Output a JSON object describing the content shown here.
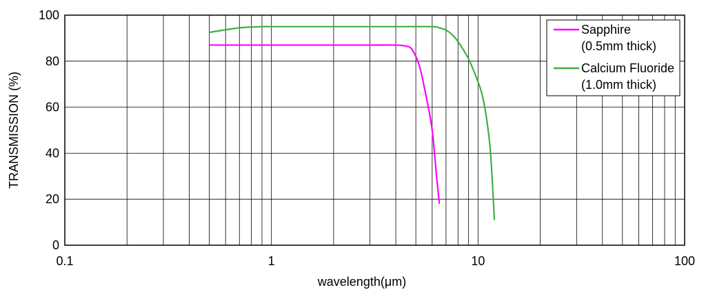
{
  "chart_data": {
    "type": "line",
    "xlabel": "wavelength(μm)",
    "ylabel": "TRANSMISSION (%)",
    "xscale": "log",
    "xlim": [
      0.1,
      100
    ],
    "ylim": [
      0,
      100
    ],
    "x_ticks": [
      0.1,
      1,
      10,
      100
    ],
    "x_tick_labels": [
      "0.1",
      "1",
      "10",
      "100"
    ],
    "y_ticks": [
      0,
      20,
      40,
      60,
      80,
      100
    ],
    "y_tick_labels": [
      "0",
      "20",
      "40",
      "60",
      "80",
      "100"
    ],
    "grid": true,
    "legend_position": "top-right",
    "series": [
      {
        "name": "Sapphire",
        "name_line2": "(0.5mm thick)",
        "color": "#ff00ff",
        "x": [
          0.5,
          1,
          2,
          3,
          4,
          4.5,
          4.8,
          5.2,
          5.6,
          6.0,
          6.3,
          6.5
        ],
        "y": [
          87,
          87,
          87,
          87,
          87,
          86.5,
          85,
          78,
          65,
          50,
          30,
          18
        ]
      },
      {
        "name": "Calcium Fluoride",
        "name_line2": "(1.0mm thick)",
        "color": "#3cb043",
        "x": [
          0.5,
          0.7,
          0.9,
          1,
          2,
          4,
          6,
          6.5,
          7,
          7.5,
          8,
          9,
          10,
          10.5,
          11,
          11.5,
          12
        ],
        "y": [
          92.5,
          94.5,
          95,
          95,
          95,
          95,
          95,
          94.5,
          93.5,
          91.5,
          88.5,
          81,
          71,
          65,
          55,
          40,
          11
        ]
      }
    ]
  }
}
